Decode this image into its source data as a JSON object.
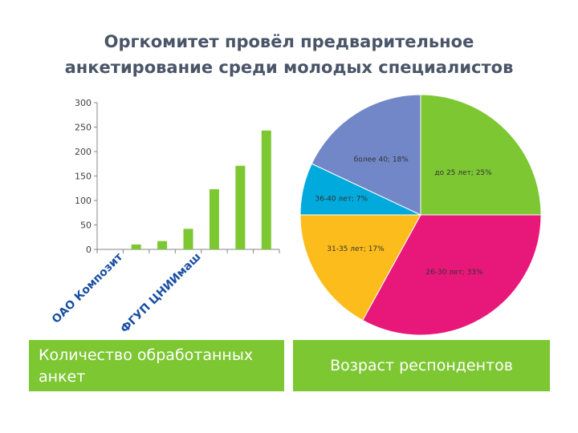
{
  "slide": {
    "title_line1": "Оргкомитет провёл предварительное",
    "title_line2": "анкетирование среди молодых специалистов",
    "caption_left": "Количество обработанных анкет",
    "caption_right": "Возраст респондентов"
  },
  "colors": {
    "bar": "#7dc733",
    "title": "#4a5568",
    "caption_bg": "#7dc733",
    "x_label": "#1a4fa3",
    "pie": [
      "#7dc733",
      "#e8177a",
      "#fcbc1b",
      "#00aadd",
      "#7187c8"
    ]
  },
  "chart_data": [
    {
      "type": "bar",
      "categories": [
        "ОАО Композит",
        "",
        "",
        "ФГУП ЦНИИмаш",
        "",
        "",
        ""
      ],
      "values": [
        0,
        10,
        17,
        42,
        123,
        171,
        243
      ],
      "ylim": [
        0,
        300
      ],
      "yticks": [
        0,
        50,
        100,
        150,
        200,
        250,
        300
      ],
      "title": "",
      "xlabel": "",
      "ylabel": "",
      "grid": false
    },
    {
      "type": "pie",
      "labels": [
        "до 25 лет",
        "26-30 лет",
        "31-35 лет",
        "36-40 лет",
        "более 40"
      ],
      "values": [
        25,
        33,
        17,
        7,
        18
      ],
      "data_labels": [
        "до 25 лет; 25%",
        "26-30 лет; 33%",
        "31-35 лет; 17%",
        "36-40 лет; 7%",
        "более 40; 18%"
      ]
    }
  ]
}
